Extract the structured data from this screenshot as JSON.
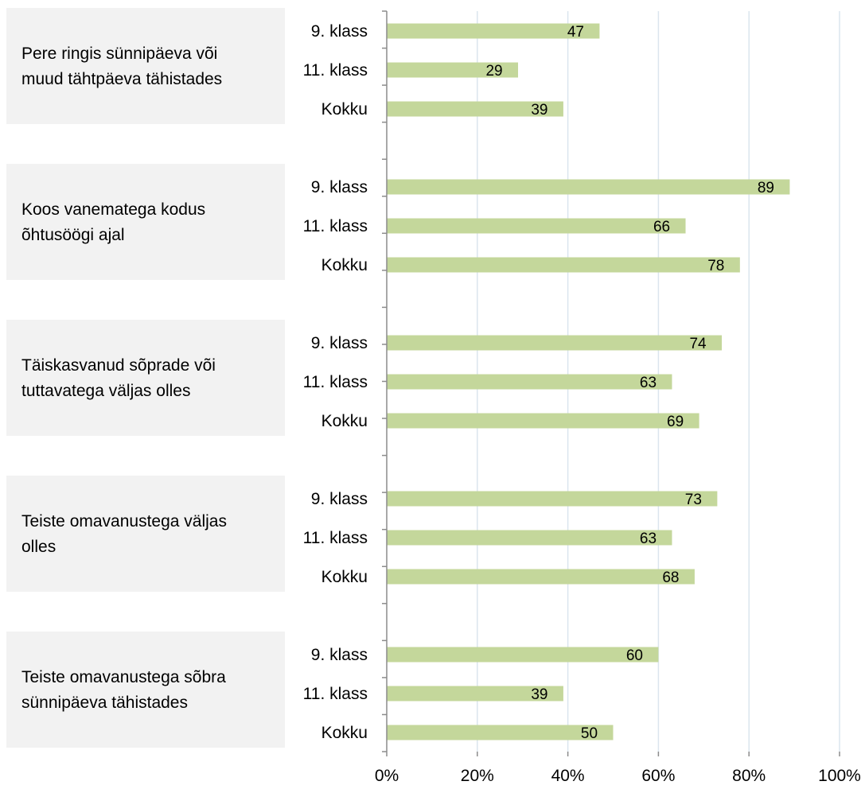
{
  "chart_data": {
    "type": "bar",
    "orientation": "horizontal",
    "xlim": [
      0,
      100
    ],
    "x_ticks": [
      "0%",
      "20%",
      "40%",
      "60%",
      "80%",
      "100%"
    ],
    "grid": true,
    "bar_color": "#c4d79b",
    "groups": [
      {
        "label_lines": [
          "Pere ringis sünnipäeva või",
          "muud tähtpäeva tähistades"
        ],
        "categories": [
          "9. klass",
          "11. klass",
          "Kokku"
        ],
        "values": [
          47,
          29,
          39
        ]
      },
      {
        "label_lines": [
          "Koos vanematega kodus",
          "õhtusöögi ajal"
        ],
        "categories": [
          "9. klass",
          "11. klass",
          "Kokku"
        ],
        "values": [
          89,
          66,
          78
        ]
      },
      {
        "label_lines": [
          "Täiskasvanud sõprade või",
          "tuttavatega väljas  olles"
        ],
        "categories": [
          "9. klass",
          "11. klass",
          "Kokku"
        ],
        "values": [
          74,
          63,
          69
        ]
      },
      {
        "label_lines": [
          "Teiste omavanustega väljas",
          "olles"
        ],
        "categories": [
          "9. klass",
          "11. klass",
          "Kokku"
        ],
        "values": [
          73,
          63,
          68
        ]
      },
      {
        "label_lines": [
          "Teiste omavanustega sõbra",
          "sünnipäeva tähistades"
        ],
        "categories": [
          "9. klass",
          "11. klass",
          "Kokku"
        ],
        "values": [
          60,
          39,
          50
        ]
      }
    ]
  }
}
